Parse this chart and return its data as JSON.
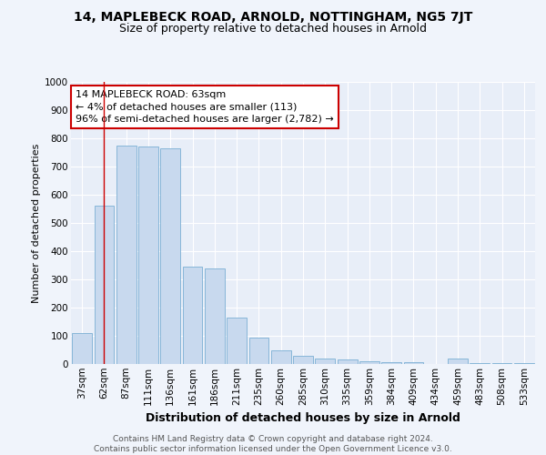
{
  "title1": "14, MAPLEBECK ROAD, ARNOLD, NOTTINGHAM, NG5 7JT",
  "title2": "Size of property relative to detached houses in Arnold",
  "xlabel": "Distribution of detached houses by size in Arnold",
  "ylabel": "Number of detached properties",
  "categories": [
    "37sqm",
    "62sqm",
    "87sqm",
    "111sqm",
    "136sqm",
    "161sqm",
    "186sqm",
    "211sqm",
    "235sqm",
    "260sqm",
    "285sqm",
    "310sqm",
    "335sqm",
    "359sqm",
    "384sqm",
    "409sqm",
    "434sqm",
    "459sqm",
    "483sqm",
    "508sqm",
    "533sqm"
  ],
  "values": [
    110,
    560,
    775,
    770,
    765,
    345,
    340,
    165,
    95,
    50,
    30,
    20,
    15,
    10,
    8,
    5,
    1,
    20,
    3,
    3,
    2
  ],
  "bar_color": "#c8d9ee",
  "bar_edge_color": "#7aafd4",
  "highlight_bar_index": 1,
  "highlight_line_color": "#cc0000",
  "annotation_text": "14 MAPLEBECK ROAD: 63sqm\n← 4% of detached houses are smaller (113)\n96% of semi-detached houses are larger (2,782) →",
  "annotation_box_color": "#ffffff",
  "annotation_box_edge_color": "#cc0000",
  "ylim": [
    0,
    1000
  ],
  "yticks": [
    0,
    100,
    200,
    300,
    400,
    500,
    600,
    700,
    800,
    900,
    1000
  ],
  "bg_color": "#e8eef8",
  "fig_bg_color": "#f0f4fb",
  "footer_text": "Contains HM Land Registry data © Crown copyright and database right 2024.\nContains public sector information licensed under the Open Government Licence v3.0.",
  "title1_fontsize": 10,
  "title2_fontsize": 9,
  "xlabel_fontsize": 9,
  "ylabel_fontsize": 8,
  "annotation_fontsize": 8,
  "footer_fontsize": 6.5,
  "tick_fontsize": 7.5
}
